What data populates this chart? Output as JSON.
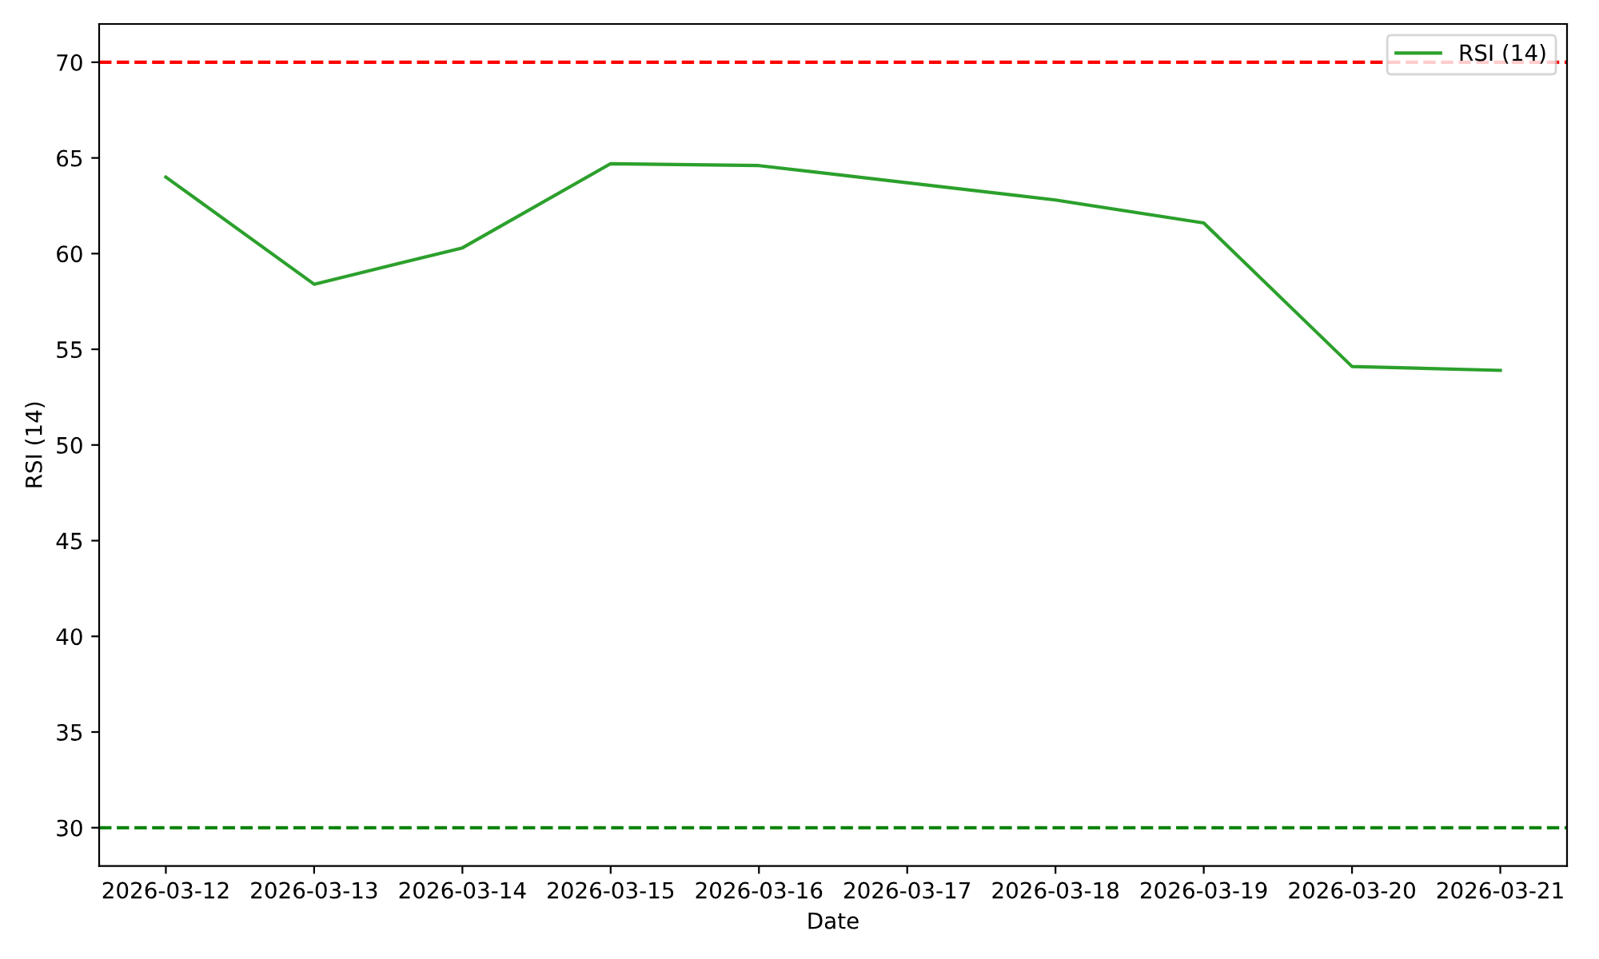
{
  "chart_data": {
    "type": "line",
    "xlabel": "Date",
    "ylabel": "RSI (14)",
    "x": [
      "2026-03-12",
      "2026-03-13",
      "2026-03-14",
      "2026-03-15",
      "2026-03-16",
      "2026-03-18",
      "2026-03-19",
      "2026-03-20",
      "2026-03-21"
    ],
    "series": [
      {
        "name": "RSI (14)",
        "color": "#2ca02c",
        "values": [
          64.0,
          58.4,
          60.3,
          64.7,
          64.6,
          62.8,
          61.6,
          54.1,
          53.9
        ]
      }
    ],
    "ref_lines": [
      {
        "axis": "y",
        "value": 70,
        "color": "#ff0000",
        "line_style": "dashed"
      },
      {
        "axis": "y",
        "value": 30,
        "color": "#008000",
        "line_style": "dashed"
      }
    ],
    "xlim": [
      "2026-03-11T13:12",
      "2026-03-21T10:48"
    ],
    "xticks": [
      "2026-03-12",
      "2026-03-13",
      "2026-03-14",
      "2026-03-15",
      "2026-03-16",
      "2026-03-17",
      "2026-03-18",
      "2026-03-19",
      "2026-03-20",
      "2026-03-21"
    ],
    "ylim": [
      28,
      72
    ],
    "yticks": [
      30,
      35,
      40,
      45,
      50,
      55,
      60,
      65,
      70
    ],
    "grid": false,
    "legend": "top right",
    "marker": "none",
    "line_style": "solid"
  }
}
